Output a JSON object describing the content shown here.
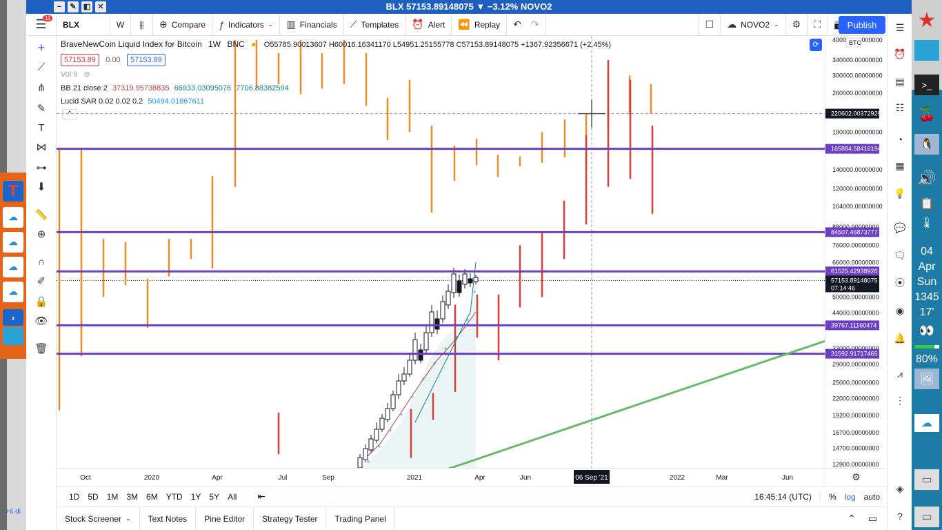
{
  "window": {
    "title": "BLX 57153.89148075 ▼ −3.12% NOVO2",
    "controls": [
      "−",
      "✎",
      "◧",
      "✕"
    ]
  },
  "toolbar": {
    "notification_count": "11",
    "symbol": "BLX",
    "interval": "W",
    "compare": "Compare",
    "indicators": "Indicators",
    "financials": "Financials",
    "templates": "Templates",
    "alert": "Alert",
    "replay": "Replay",
    "layout_name": "NOVO2",
    "publish": "Publish"
  },
  "legend": {
    "title": "BraveNewCoin Liquid Index for Bitcoin",
    "interval": "1W",
    "exchange": "BNC",
    "ohlc": {
      "o_label": "O",
      "o": "55785.90013607",
      "h_label": "H",
      "h": "60016.16341170",
      "l_label": "L",
      "l": "54951.25155778",
      "c_label": "C",
      "c": "57153.89148075",
      "change": "+1367.92356671 (+2.45%)"
    },
    "sell_price": "57153.89",
    "spread": "0.00",
    "buy_price": "57153.89",
    "vol": "Vol 9",
    "bb_label": "BB 21 close 2",
    "bb_mid": "37319.95738835",
    "bb_upper": "66933.03095076",
    "bb_lower": "7706.88382594",
    "sar_label": "Lucid SAR 0.02 0.02 0.2",
    "sar_value": "50494.01867611"
  },
  "price_axis": {
    "currency": "BTC",
    "ticks": [
      {
        "price": 400000,
        "label": "400000.00000000"
      },
      {
        "price": 340000,
        "label": "340000.00000000"
      },
      {
        "price": 300000,
        "label": "300000.00000000"
      },
      {
        "price": 260000,
        "label": "260000.00000000"
      },
      {
        "price": 190000,
        "label": "190000.00000000"
      },
      {
        "price": 140000,
        "label": "140000.00000000"
      },
      {
        "price": 120000,
        "label": "120000.00000000"
      },
      {
        "price": 104000,
        "label": "104000.00000000"
      },
      {
        "price": 88000,
        "label": "88000.00000000"
      },
      {
        "price": 76000,
        "label": "76000.00000000"
      },
      {
        "price": 66000,
        "label": "66000.00000000"
      },
      {
        "price": 50000,
        "label": "50000.00000000"
      },
      {
        "price": 44000,
        "label": "44000.00000000"
      },
      {
        "price": 33000,
        "label": "33000.00000000"
      },
      {
        "price": 29000,
        "label": "29000.00000000"
      },
      {
        "price": 25000,
        "label": "25000.00000000"
      },
      {
        "price": 22000,
        "label": "22000.00000000"
      },
      {
        "price": 19200,
        "label": "19200.00000000"
      },
      {
        "price": 16700,
        "label": "16700.00000000"
      },
      {
        "price": 14700,
        "label": "14700.00000000"
      },
      {
        "price": 12900,
        "label": "12900.00000000"
      }
    ],
    "crosshair_label": "220602.00372929",
    "last_price_label": "57153.89148075",
    "countdown": "07:14:46",
    "hline_labels": [
      {
        "price": 165884.58,
        "label": "165884.58416194"
      },
      {
        "price": 84507.47,
        "label": "84507.46873777"
      },
      {
        "price": 61525.43,
        "label": "61525.42938926"
      },
      {
        "price": 39767.11,
        "label": "39767.11160474"
      },
      {
        "price": 31592.92,
        "label": "31592.91717465"
      }
    ],
    "colors": {
      "hline": "#6a3fc2",
      "last_price": "#131722",
      "crosshair": "#131722"
    }
  },
  "time_axis": {
    "labels": [
      "Oct",
      "2020",
      "Apr",
      "Jul",
      "Sep",
      "2021",
      "Apr",
      "Jun",
      "2022",
      "Mar",
      "Jun"
    ],
    "crosshair_date": "06 Sep '21"
  },
  "chart_data": {
    "type": "candlestick",
    "symbol": "BLX",
    "interval": "1W",
    "horizontal_levels": [
      165884.58,
      84507.47,
      61525.43,
      39767.11,
      31592.92
    ],
    "trend_line": {
      "from": {
        "date": "Jan 2021",
        "price": 12400
      },
      "to": {
        "date": "Jul 2022",
        "price": 35000
      }
    },
    "projection_bars": [
      {
        "color": "orange",
        "low": 20000,
        "high": 165000
      },
      {
        "color": "orange",
        "low": 31000,
        "high": 165000
      },
      {
        "color": "orange",
        "low": 50000,
        "high": 80000
      },
      {
        "color": "orange",
        "low": 55000,
        "high": 78000
      },
      {
        "color": "orange",
        "low": 39000,
        "high": 58000
      },
      {
        "color": "orange",
        "low": 59000,
        "high": 80000
      },
      {
        "color": "orange",
        "low": 68000,
        "high": 80000
      },
      {
        "color": "orange",
        "low": 63000,
        "high": 133000
      },
      {
        "color": "orange",
        "low": 122000,
        "high": 400000
      },
      {
        "color": "orange",
        "low": 270000,
        "high": 400000
      },
      {
        "color": "orange",
        "low": 280000,
        "high": 360000
      },
      {
        "color": "orange",
        "low": 258000,
        "high": 400000
      },
      {
        "color": "orange",
        "low": 270000,
        "high": 360000
      },
      {
        "color": "orange",
        "low": 280000,
        "high": 400000
      },
      {
        "color": "orange",
        "low": 235000,
        "high": 360000
      },
      {
        "color": "orange",
        "low": 178000,
        "high": 250000
      },
      {
        "color": "orange",
        "low": 190000,
        "high": 290000
      },
      {
        "color": "orange",
        "low": 99000,
        "high": 200000
      },
      {
        "color": "orange",
        "low": 128000,
        "high": 170000
      },
      {
        "color": "orange",
        "low": 145000,
        "high": 180000
      },
      {
        "color": "orange",
        "low": 132000,
        "high": 158000
      },
      {
        "color": "orange",
        "low": 144000,
        "high": 156000
      },
      {
        "color": "orange",
        "low": 148000,
        "high": 190000
      },
      {
        "color": "orange",
        "low": 155000,
        "high": 210000
      },
      {
        "color": "orange",
        "low": 143000,
        "high": 220000
      },
      {
        "color": "orange",
        "low": 190000,
        "high": 310000
      },
      {
        "color": "orange",
        "low": 220000,
        "high": 300000
      },
      {
        "color": "orange",
        "low": 220000,
        "high": 280000
      },
      {
        "color": "red",
        "low": 14000,
        "high": 19600
      },
      {
        "color": "red",
        "low": 13600,
        "high": 20200
      },
      {
        "color": "red",
        "low": 18500,
        "high": 23000
      },
      {
        "color": "red",
        "low": 23200,
        "high": 47000
      },
      {
        "color": "red",
        "low": 36000,
        "high": 51000
      },
      {
        "color": "red",
        "low": 30000,
        "high": 51000
      },
      {
        "color": "red",
        "low": 46000,
        "high": 76000
      },
      {
        "color": "red",
        "low": 50000,
        "high": 84000
      },
      {
        "color": "red",
        "low": 68000,
        "high": 109000
      },
      {
        "color": "red",
        "low": 90000,
        "high": 185000
      },
      {
        "color": "red",
        "low": 122000,
        "high": 340000
      },
      {
        "color": "red",
        "low": 130000,
        "high": 290000
      },
      {
        "color": "red",
        "low": 98000,
        "high": 200000
      }
    ]
  },
  "range_bar": {
    "ranges": [
      "1D",
      "5D",
      "1M",
      "3M",
      "6M",
      "YTD",
      "1Y",
      "5Y",
      "All"
    ],
    "clock": "16:45:14 (UTC)",
    "percent": "%",
    "log": "log",
    "auto": "auto"
  },
  "bottom_tabs": [
    "Stock Screener",
    "Text Notes",
    "Pine Editor",
    "Strategy Tester",
    "Trading Panel"
  ],
  "dock": {
    "day": "04",
    "month": "Apr",
    "weekday": "Sun",
    "time": "1345",
    "seconds": "17'",
    "battery": "80%"
  },
  "left_panel": {
    "bottom_text": "+6.di"
  }
}
